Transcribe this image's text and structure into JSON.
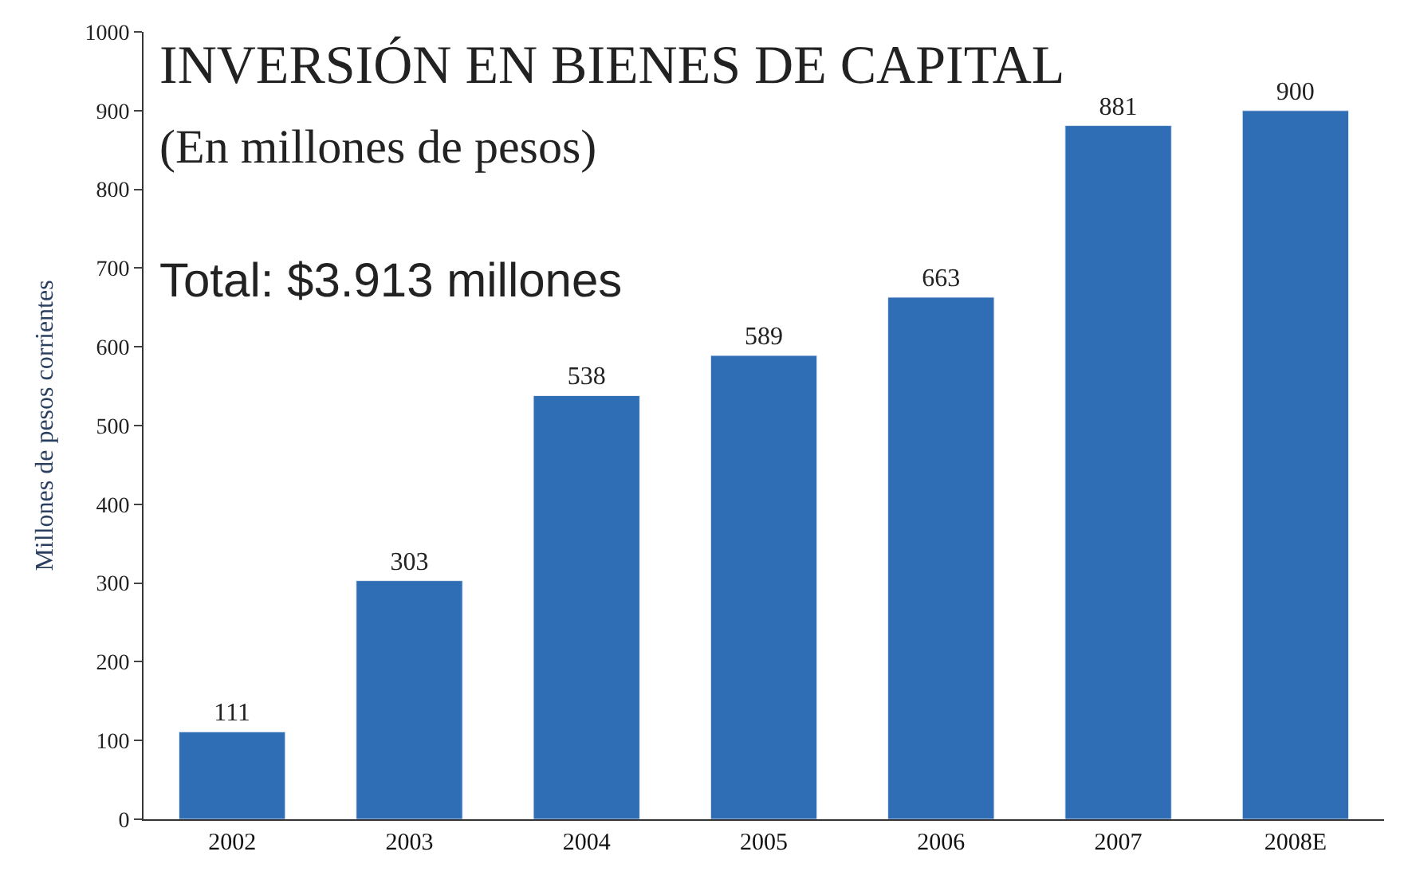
{
  "chart_data": {
    "type": "bar",
    "title": "INVERSIÓN EN BIENES DE CAPITAL",
    "subtitle": "(En millones de pesos)",
    "ylabel": "Millones de pesos corrientes",
    "annotations": [
      "Total: $3.913 millones"
    ],
    "categories": [
      "2002",
      "2003",
      "2004",
      "2005",
      "2006",
      "2007",
      "2008E"
    ],
    "values": [
      111,
      303,
      538,
      589,
      663,
      881,
      900
    ],
    "color": "#2f6db5",
    "ylim": [
      0,
      1000
    ],
    "yticks": [
      0,
      100,
      200,
      300,
      400,
      500,
      600,
      700,
      800,
      900,
      1000
    ],
    "data_labels": true,
    "legend": false
  }
}
